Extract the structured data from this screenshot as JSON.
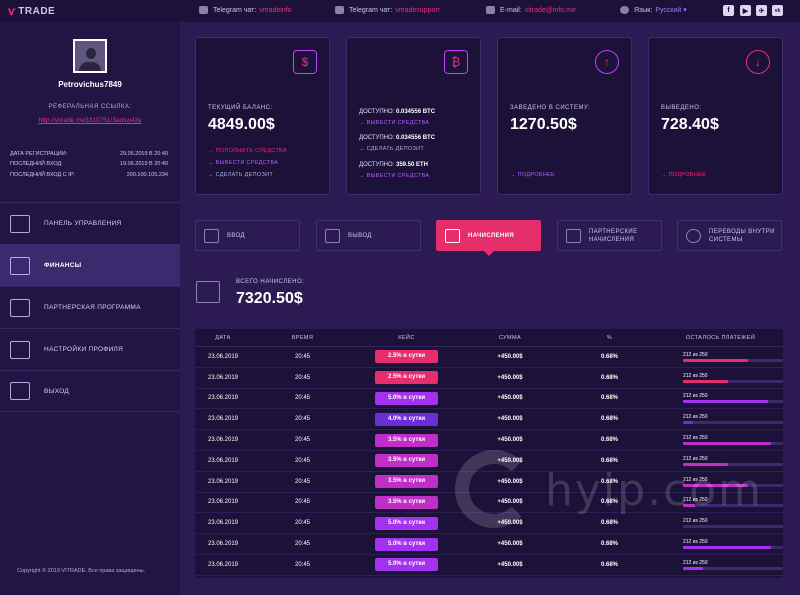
{
  "topbar": {
    "logo": "TRADE",
    "telegram_chat_label": "Telegram чат:",
    "telegram_chat_link": "vitradeinfo",
    "telegram_support_label": "Telegram чат:",
    "telegram_support_link": "vitradesupport",
    "email_label": "E-mail:",
    "email_link": "vitrade@info.me",
    "lang_label": "Язык:",
    "lang_value": "Русский ▾",
    "social": [
      "f",
      "▶",
      "✈",
      "vk"
    ]
  },
  "sidebar": {
    "username": "Petrovichus7849",
    "ref_title": "РЕФЕРАЛЬНАЯ ССЫЛКА:",
    "ref_link": "http://vitrade.me3310751/3adsw43y",
    "meta": [
      {
        "label": "ДАТА РЕГИСТРАЦИИ:",
        "value": "29.06.2019 В 20:40"
      },
      {
        "label": "ПОСЛЕДНИЙ ВХОД:",
        "value": "19.06.2019 В 20:40"
      },
      {
        "label": "ПОСЛЕДНИЙ ВХОД С IP:",
        "value": "200.100.105.234"
      }
    ],
    "menu": [
      {
        "label": "ПАНЕЛЬ УПРАВЛЕНИЯ",
        "active": false
      },
      {
        "label": "ФИНАНСЫ",
        "active": true
      },
      {
        "label": "ПАРТНЕРСКАЯ ПРОГРАММА",
        "active": false
      },
      {
        "label": "НАСТРОЙКИ ПРОФИЛЯ",
        "active": false
      },
      {
        "label": "ВЫХОД",
        "active": false
      }
    ],
    "copyright": "Copyright © 2019 VITRADE. Все права защищены."
  },
  "cards": {
    "balance": {
      "label": "ТЕКУЩИЙ БАЛАНС:",
      "value": "4849.00$",
      "links": [
        "→ ПОПОЛНИТЬ СРЕДСТВА",
        "→ ВЫВЕСТИ СРЕДСТВА",
        "→ СДЕЛАТЬ ДЕПОЗИТ"
      ]
    },
    "available": {
      "rows": [
        {
          "label": "ДОСТУПНО:",
          "value": "0.034556 BTC",
          "link": "→ ВЫВЕСТИ СРЕДСТВА"
        },
        {
          "label": "ДОСТУПНО:",
          "value": "0.034556 BTC",
          "link": "→ СДЕЛАТЬ ДЕПОЗИТ"
        },
        {
          "label": "ДОСТУПНО:",
          "value": "359.50 ETH",
          "link": "→ ВЫВЕСТИ СРЕДСТВА"
        }
      ]
    },
    "deposited": {
      "label": "ЗАВЕДЕНО В СИСТЕМУ:",
      "value": "1270.50$",
      "link": "→ ПОДРОБНЕЕ"
    },
    "withdrawn": {
      "label": "ВЫВЕДЕНО:",
      "value": "728.40$",
      "link": "→ ПОДРОБНЕЕ"
    }
  },
  "tabs": [
    "ВВОД",
    "ВЫВОД",
    "НАЧИСЛЕНИЯ",
    "ПАРТНЕРСКИЕ НАЧИСЛЕНИЯ",
    "ПЕРЕВОДЫ ВНУТРИ СИСТЕМЫ"
  ],
  "total": {
    "label": "ВСЕГО НАЧИСЛЕНО:",
    "value": "7320.50$"
  },
  "table": {
    "headers": [
      "ДАТА",
      "ВРЕМЯ",
      "КЕЙС",
      "СУММА",
      "%",
      "ОСТАЛОСЬ ПЛАТЕЖЕЙ"
    ],
    "rows": [
      {
        "date": "23.06.2019",
        "time": "20:45",
        "case": "2.5% в сутки",
        "sum": "+450.00$",
        "pct": "0.68%",
        "left": "212 из 250",
        "progress": 0.65,
        "color": "#e62e6c"
      },
      {
        "date": "23.06.2019",
        "time": "20:45",
        "case": "2.5% в сутки",
        "sum": "+450.00$",
        "pct": "0.68%",
        "left": "212 из 250",
        "progress": 0.45,
        "color": "#e62e6c"
      },
      {
        "date": "23.06.2019",
        "time": "20:45",
        "case": "5.0% в сутки",
        "sum": "+450.00$",
        "pct": "0.68%",
        "left": "212 из 250",
        "progress": 0.85,
        "color": "#a431f0"
      },
      {
        "date": "23.06.2019",
        "time": "20:45",
        "case": "4.0% в сутки",
        "sum": "+450.00$",
        "pct": "0.68%",
        "left": "212 из 250",
        "progress": 0.1,
        "color": "#6b2fd6"
      },
      {
        "date": "23.06.2019",
        "time": "20:45",
        "case": "3.5% в сутки",
        "sum": "+450.00$",
        "pct": "0.68%",
        "left": "212 из 250",
        "progress": 0.88,
        "color": "#c02ec8"
      },
      {
        "date": "23.06.2019",
        "time": "20:45",
        "case": "3.5% в сутки",
        "sum": "+450.00$",
        "pct": "0.68%",
        "left": "212 из 250",
        "progress": 0.45,
        "color": "#c02ec8"
      },
      {
        "date": "23.06.2019",
        "time": "20:45",
        "case": "3.5% в сутки",
        "sum": "+450.00$",
        "pct": "0.68%",
        "left": "212 из 250",
        "progress": 0.65,
        "color": "#c02ec8"
      },
      {
        "date": "23.06.2019",
        "time": "20:45",
        "case": "3.5% в сутки",
        "sum": "+450.00$",
        "pct": "0.68%",
        "left": "212 из 250",
        "progress": 0.12,
        "color": "#c02ec8"
      },
      {
        "date": "23.06.2019",
        "time": "20:45",
        "case": "5.0% в сутки",
        "sum": "+450.00$",
        "pct": "0.68%",
        "left": "212 из 250",
        "progress": 0.0,
        "color": "#a431f0"
      },
      {
        "date": "23.06.2019",
        "time": "20:45",
        "case": "5.0% в сутки",
        "sum": "+450.00$",
        "pct": "0.68%",
        "left": "212 из 250",
        "progress": 0.88,
        "color": "#a431f0"
      },
      {
        "date": "23.06.2019",
        "time": "20:45",
        "case": "5.0% в сутки",
        "sum": "+450.00$",
        "pct": "0.68%",
        "left": "212 из 250",
        "progress": 0.2,
        "color": "#a431f0"
      }
    ]
  },
  "watermark": "hyip.com"
}
